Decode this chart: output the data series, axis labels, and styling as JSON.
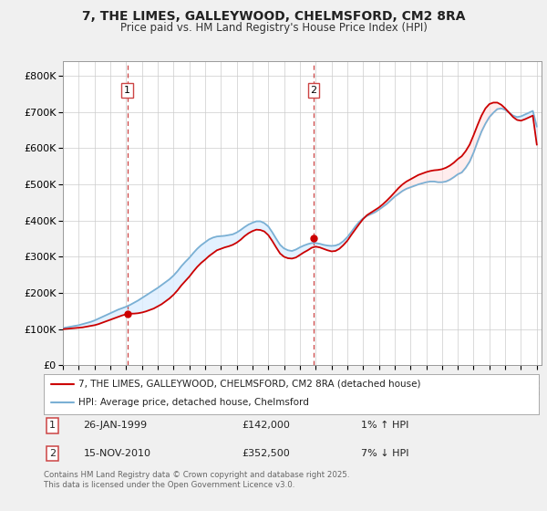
{
  "title1": "7, THE LIMES, GALLEYWOOD, CHELMSFORD, CM2 8RA",
  "title2": "Price paid vs. HM Land Registry's House Price Index (HPI)",
  "yticks": [
    0,
    100000,
    200000,
    300000,
    400000,
    500000,
    600000,
    700000,
    800000
  ],
  "ytick_labels": [
    "£0",
    "£100K",
    "£200K",
    "£300K",
    "£400K",
    "£500K",
    "£600K",
    "£700K",
    "£800K"
  ],
  "xlim_start": 1995.0,
  "xlim_end": 2025.3,
  "ylim_min": 0,
  "ylim_max": 840000,
  "purchase1_x": 1999.07,
  "purchase1_y": 142000,
  "purchase2_x": 2010.88,
  "purchase2_y": 352500,
  "legend_label_red": "7, THE LIMES, GALLEYWOOD, CHELMSFORD, CM2 8RA (detached house)",
  "legend_label_blue": "HPI: Average price, detached house, Chelmsford",
  "footnote": "Contains HM Land Registry data © Crown copyright and database right 2025.\nThis data is licensed under the Open Government Licence v3.0.",
  "red_color": "#cc0000",
  "blue_color": "#7ab0d4",
  "fill_color": "#ddeeff",
  "vline_color": "#cc4444",
  "bg_color": "#f0f0f0",
  "plot_bg": "#ffffff",
  "grid_color": "#cccccc",
  "hpi_x": [
    1995.0,
    1995.25,
    1995.5,
    1995.75,
    1996.0,
    1996.25,
    1996.5,
    1996.75,
    1997.0,
    1997.25,
    1997.5,
    1997.75,
    1998.0,
    1998.25,
    1998.5,
    1998.75,
    1999.0,
    1999.25,
    1999.5,
    1999.75,
    2000.0,
    2000.25,
    2000.5,
    2000.75,
    2001.0,
    2001.25,
    2001.5,
    2001.75,
    2002.0,
    2002.25,
    2002.5,
    2002.75,
    2003.0,
    2003.25,
    2003.5,
    2003.75,
    2004.0,
    2004.25,
    2004.5,
    2004.75,
    2005.0,
    2005.25,
    2005.5,
    2005.75,
    2006.0,
    2006.25,
    2006.5,
    2006.75,
    2007.0,
    2007.25,
    2007.5,
    2007.75,
    2008.0,
    2008.25,
    2008.5,
    2008.75,
    2009.0,
    2009.25,
    2009.5,
    2009.75,
    2010.0,
    2010.25,
    2010.5,
    2010.75,
    2011.0,
    2011.25,
    2011.5,
    2011.75,
    2012.0,
    2012.25,
    2012.5,
    2012.75,
    2013.0,
    2013.25,
    2013.5,
    2013.75,
    2014.0,
    2014.25,
    2014.5,
    2014.75,
    2015.0,
    2015.25,
    2015.5,
    2015.75,
    2016.0,
    2016.25,
    2016.5,
    2016.75,
    2017.0,
    2017.25,
    2017.5,
    2017.75,
    2018.0,
    2018.25,
    2018.5,
    2018.75,
    2019.0,
    2019.25,
    2019.5,
    2019.75,
    2020.0,
    2020.25,
    2020.5,
    2020.75,
    2021.0,
    2021.25,
    2021.5,
    2021.75,
    2022.0,
    2022.25,
    2022.5,
    2022.75,
    2023.0,
    2023.25,
    2023.5,
    2023.75,
    2024.0,
    2024.25,
    2024.5,
    2024.75,
    2025.0
  ],
  "hpi_y": [
    103000,
    105000,
    107000,
    109000,
    111000,
    114000,
    117000,
    120000,
    124000,
    129000,
    134000,
    139000,
    144000,
    149000,
    154000,
    158000,
    162000,
    167000,
    173000,
    179000,
    186000,
    193000,
    200000,
    207000,
    214000,
    222000,
    230000,
    238000,
    248000,
    260000,
    274000,
    286000,
    297000,
    310000,
    322000,
    332000,
    340000,
    348000,
    353000,
    356000,
    357000,
    358000,
    360000,
    362000,
    367000,
    374000,
    382000,
    389000,
    394000,
    398000,
    398000,
    393000,
    384000,
    368000,
    350000,
    333000,
    323000,
    318000,
    316000,
    320000,
    326000,
    331000,
    335000,
    338000,
    338000,
    336000,
    333000,
    331000,
    330000,
    331000,
    335000,
    343000,
    354000,
    368000,
    383000,
    396000,
    406000,
    413000,
    418000,
    423000,
    430000,
    438000,
    446000,
    456000,
    466000,
    474000,
    482000,
    488000,
    492000,
    496000,
    500000,
    503000,
    506000,
    508000,
    508000,
    506000,
    506000,
    508000,
    513000,
    520000,
    528000,
    533000,
    546000,
    563000,
    588000,
    618000,
    646000,
    668000,
    686000,
    698000,
    708000,
    710000,
    706000,
    698000,
    690000,
    686000,
    688000,
    693000,
    698000,
    703000,
    660000
  ],
  "red_x": [
    1995.0,
    1995.25,
    1995.5,
    1995.75,
    1996.0,
    1996.25,
    1996.5,
    1996.75,
    1997.0,
    1997.25,
    1997.5,
    1997.75,
    1998.0,
    1998.25,
    1998.5,
    1998.75,
    1999.0,
    1999.25,
    1999.5,
    1999.75,
    2000.0,
    2000.25,
    2000.5,
    2000.75,
    2001.0,
    2001.25,
    2001.5,
    2001.75,
    2002.0,
    2002.25,
    2002.5,
    2002.75,
    2003.0,
    2003.25,
    2003.5,
    2003.75,
    2004.0,
    2004.25,
    2004.5,
    2004.75,
    2005.0,
    2005.25,
    2005.5,
    2005.75,
    2006.0,
    2006.25,
    2006.5,
    2006.75,
    2007.0,
    2007.25,
    2007.5,
    2007.75,
    2008.0,
    2008.25,
    2008.5,
    2008.75,
    2009.0,
    2009.25,
    2009.5,
    2009.75,
    2010.0,
    2010.25,
    2010.5,
    2010.75,
    2011.0,
    2011.25,
    2011.5,
    2011.75,
    2012.0,
    2012.25,
    2012.5,
    2012.75,
    2013.0,
    2013.25,
    2013.5,
    2013.75,
    2014.0,
    2014.25,
    2014.5,
    2014.75,
    2015.0,
    2015.25,
    2015.5,
    2015.75,
    2016.0,
    2016.25,
    2016.5,
    2016.75,
    2017.0,
    2017.25,
    2017.5,
    2017.75,
    2018.0,
    2018.25,
    2018.5,
    2018.75,
    2019.0,
    2019.25,
    2019.5,
    2019.75,
    2020.0,
    2020.25,
    2020.5,
    2020.75,
    2021.0,
    2021.25,
    2021.5,
    2021.75,
    2022.0,
    2022.25,
    2022.5,
    2022.75,
    2023.0,
    2023.25,
    2023.5,
    2023.75,
    2024.0,
    2024.25,
    2024.5,
    2024.75,
    2025.0
  ],
  "red_y": [
    100000,
    101000,
    102000,
    103000,
    104000,
    105000,
    107000,
    109000,
    111000,
    114000,
    118000,
    122000,
    126000,
    130000,
    134000,
    138000,
    141000,
    143000,
    143000,
    144000,
    146000,
    149000,
    153000,
    157000,
    163000,
    169000,
    177000,
    185000,
    195000,
    207000,
    221000,
    233000,
    245000,
    259000,
    272000,
    283000,
    292000,
    302000,
    310000,
    318000,
    322000,
    326000,
    329000,
    333000,
    339000,
    347000,
    357000,
    365000,
    371000,
    375000,
    374000,
    370000,
    360000,
    344000,
    326000,
    309000,
    300000,
    296000,
    295000,
    298000,
    305000,
    312000,
    318000,
    325000,
    328000,
    326000,
    322000,
    318000,
    315000,
    316000,
    322000,
    332000,
    344000,
    360000,
    375000,
    390000,
    404000,
    415000,
    422000,
    429000,
    436000,
    445000,
    455000,
    466000,
    478000,
    490000,
    500000,
    508000,
    514000,
    520000,
    526000,
    530000,
    534000,
    537000,
    539000,
    540000,
    542000,
    546000,
    552000,
    560000,
    570000,
    578000,
    592000,
    610000,
    636000,
    664000,
    690000,
    710000,
    722000,
    726000,
    726000,
    720000,
    710000,
    698000,
    686000,
    678000,
    676000,
    680000,
    685000,
    690000,
    610000
  ]
}
